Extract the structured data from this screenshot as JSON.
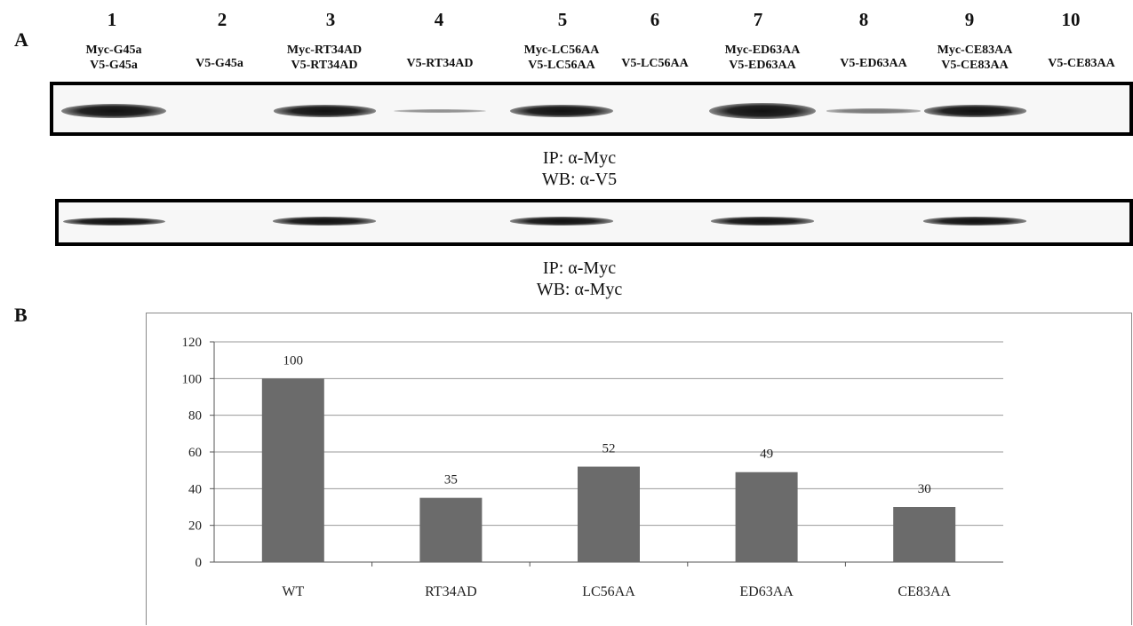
{
  "panels": {
    "a_label": "A",
    "b_label": "B"
  },
  "lanes": [
    {
      "num": "1",
      "line1": "Myc-G45a",
      "line2": "V5-G45a"
    },
    {
      "num": "2",
      "line1": "",
      "line2": "V5-G45a"
    },
    {
      "num": "3",
      "line1": "Myc-RT34AD",
      "line2": "V5-RT34AD"
    },
    {
      "num": "4",
      "line1": "",
      "line2": "V5-RT34AD"
    },
    {
      "num": "5",
      "line1": "Myc-LC56AA",
      "line2": "V5-LC56AA"
    },
    {
      "num": "6",
      "line1": "",
      "line2": "V5-LC56AA"
    },
    {
      "num": "7",
      "line1": "Myc-ED63AA",
      "line2": "V5-ED63AA"
    },
    {
      "num": "8",
      "line1": "",
      "line2": "V5-ED63AA"
    },
    {
      "num": "9",
      "line1": "Myc-CE83AA",
      "line2": "V5-CE83AA"
    },
    {
      "num": "10",
      "line1": "",
      "line2": "V5-CE83AA"
    }
  ],
  "blots": {
    "top_caption_line1": "IP: α-Myc",
    "top_caption_line2": "WB: α-V5",
    "bottom_caption_line1": "IP: α-Myc",
    "bottom_caption_line2": "WB: α-Myc",
    "top_band_intensity": [
      0.9,
      0,
      0.75,
      0.2,
      0.8,
      0,
      1.0,
      0.3,
      0.75,
      0
    ],
    "bottom_band_intensity": [
      0.75,
      0,
      0.8,
      0,
      0.8,
      0,
      0.8,
      0,
      0.8,
      0
    ]
  },
  "chart_data": {
    "type": "bar",
    "categories": [
      "WT",
      "RT34AD",
      "LC56AA",
      "ED63AA",
      "CE83AA"
    ],
    "values": [
      100,
      35,
      52,
      49,
      30
    ],
    "data_labels": [
      "100",
      "35",
      "52",
      "49",
      "30"
    ],
    "title": "",
    "xlabel": "",
    "ylabel": "",
    "ylim": [
      0,
      120
    ],
    "yticks": [
      0,
      20,
      40,
      60,
      80,
      100,
      120
    ],
    "grid": true,
    "bar_color": "#6b6b6b",
    "grid_color": "#9a9a9a"
  }
}
